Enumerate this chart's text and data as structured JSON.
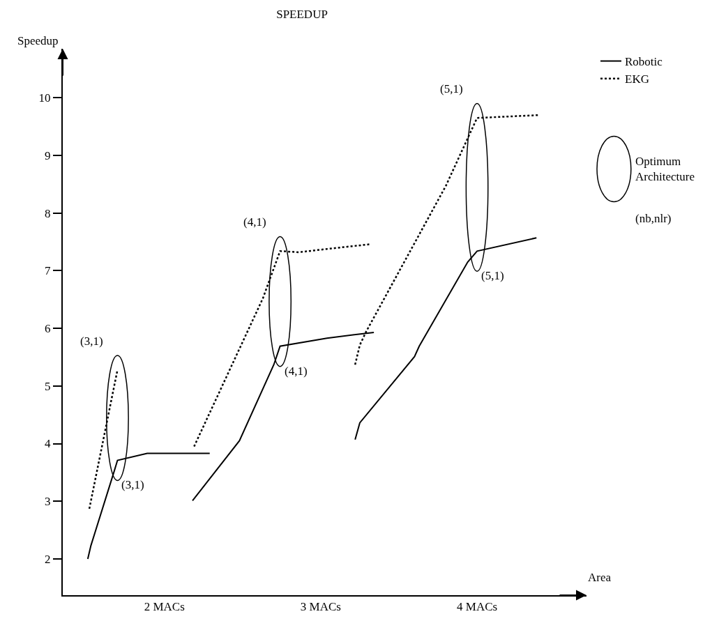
{
  "chart_data": {
    "type": "line",
    "title": "SPEEDUP",
    "ylabel": "Speedup",
    "xlabel": "Area",
    "x": [
      1.51,
      1.53,
      1.68,
      1.7,
      1.89,
      2.29,
      2.24,
      2.18,
      2.48,
      2.7,
      2.74,
      3.04,
      3.34,
      3.28,
      3.22,
      3.25,
      3.6,
      3.63,
      3.94,
      4.0,
      4.38
    ],
    "series": [
      {
        "name": "Robotic",
        "color": "#000000",
        "line_style": "solid",
        "values": [
          2.0,
          2.23,
          3.53,
          3.71,
          3.83,
          3.83,
          null,
          3.01,
          4.05,
          5.37,
          5.69,
          5.83,
          5.93,
          null,
          4.07,
          4.36,
          5.51,
          5.69,
          7.15,
          7.34,
          7.57
        ]
      },
      {
        "name": "EKG",
        "color": "#000000",
        "line_style": "dotted",
        "x": [
          1.52,
          1.7,
          1.95,
          2.19,
          2.63,
          2.74,
          2.86,
          3.05,
          3.32,
          3.27,
          3.22,
          3.25,
          3.29,
          3.8,
          4.0,
          4.4
        ],
        "values": [
          2.87,
          5.28,
          null,
          3.95,
          6.52,
          7.34,
          7.32,
          7.38,
          7.46,
          null,
          5.37,
          5.71,
          5.94,
          8.47,
          9.65,
          9.7
        ]
      }
    ],
    "annotations": [
      {
        "text": "(3,1)",
        "x": 1.7,
        "y": 5.28
      },
      {
        "text": "(3,1)",
        "x": 1.7,
        "y": 3.71
      },
      {
        "text": "(4,1)",
        "x": 2.74,
        "y": 7.34
      },
      {
        "text": "(4,1)",
        "x": 2.74,
        "y": 5.69
      },
      {
        "text": "(5,1)",
        "x": 4.0,
        "y": 9.65
      },
      {
        "text": "(5,1)",
        "x": 4.0,
        "y": 7.34
      },
      "Optimum Architecture",
      "(nb,nlr)"
    ],
    "xlim": [
      1.35,
      4.7
    ],
    "ylim": [
      1.37,
      10.85
    ],
    "xticks": [
      {
        "value": 2,
        "label": "2 MACs"
      },
      {
        "value": 3,
        "label": "3 MACs"
      },
      {
        "value": 4,
        "label": "4 MACs"
      }
    ],
    "yticks": [
      2,
      3,
      4,
      5,
      6,
      7,
      8,
      9,
      10
    ],
    "grid": false,
    "legend": "top right",
    "marker": "none"
  }
}
